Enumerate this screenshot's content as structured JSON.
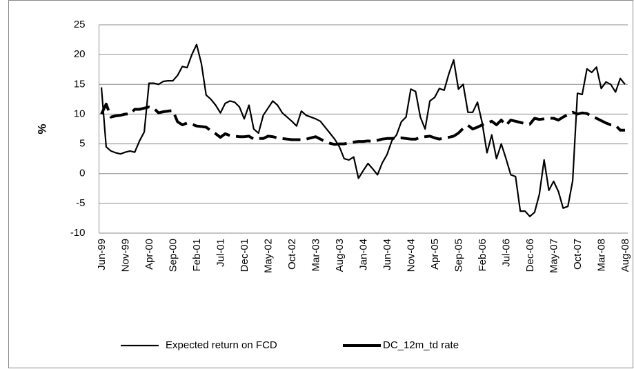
{
  "chart_data": {
    "type": "line",
    "y_label": "%",
    "categories": [
      "Jun-99",
      null,
      null,
      null,
      null,
      "Nov-99",
      null,
      null,
      null,
      null,
      "Apr-00",
      null,
      null,
      null,
      null,
      "Sep-00",
      null,
      null,
      null,
      null,
      "Feb-01",
      null,
      null,
      null,
      null,
      "Jul-01",
      null,
      null,
      null,
      null,
      "Dec-01",
      null,
      null,
      null,
      null,
      "May-02",
      null,
      null,
      null,
      null,
      "Oct-02",
      null,
      null,
      null,
      null,
      "Mar-03",
      null,
      null,
      null,
      null,
      "Aug-03",
      null,
      null,
      null,
      null,
      "Jan-04",
      null,
      null,
      null,
      null,
      "Jun-04",
      null,
      null,
      null,
      null,
      "Nov-04",
      null,
      null,
      null,
      null,
      "Apr-05",
      null,
      null,
      null,
      null,
      "Sep-05",
      null,
      null,
      null,
      null,
      "Feb-06",
      null,
      null,
      null,
      null,
      "Jul-06",
      null,
      null,
      null,
      null,
      "Dec-06",
      null,
      null,
      null,
      null,
      "May-07",
      null,
      null,
      null,
      null,
      "Oct-07",
      null,
      null,
      null,
      null,
      "Mar-08",
      null,
      null,
      null,
      null,
      "Aug-08"
    ],
    "series": [
      {
        "name": "Expected return on FCD",
        "color": "#000000",
        "line_style": "solid",
        "values": [
          14.5,
          4.5,
          3.8,
          3.5,
          3.3,
          3.6,
          3.8,
          3.6,
          5.5,
          7,
          15.2,
          15.2,
          15,
          15.5,
          15.6,
          15.6,
          16.5,
          18,
          17.8,
          20,
          21.7,
          18.5,
          13.2,
          12.5,
          11.5,
          10.2,
          11.8,
          12.2,
          12,
          11.2,
          9.2,
          11.5,
          7.5,
          6.8,
          9.8,
          11,
          12.2,
          11.5,
          10.2,
          9.5,
          8.8,
          8,
          10.5,
          9.8,
          9.5,
          9.2,
          8.8,
          7.8,
          6.8,
          5.8,
          4.5,
          2.5,
          2.3,
          2.8,
          -0.8,
          0.5,
          1.7,
          0.8,
          -0.2,
          1.8,
          3.2,
          5.5,
          6.5,
          8.7,
          9.5,
          14.2,
          13.8,
          9.5,
          7.5,
          12.2,
          12.8,
          14.3,
          14,
          16.8,
          19.1,
          14.2,
          15,
          10.3,
          10.3,
          12,
          8.5,
          3.5,
          6.5,
          2.5,
          5,
          2.5,
          -0.2,
          -0.5,
          -6.3,
          -6.3,
          -7.2,
          -6.5,
          -3.5,
          2.3,
          -2.8,
          -1.3,
          -3,
          -5.8,
          -5.5,
          -1.2,
          13.5,
          13.3,
          17.6,
          17,
          17.9,
          14.3,
          15.4,
          15,
          13.7,
          16,
          15
        ]
      },
      {
        "name": "DC_12m_td rate",
        "color": "#000000",
        "line_style": "dashed",
        "values": [
          10,
          11.7,
          9.5,
          9.7,
          9.8,
          10,
          10,
          10.8,
          10.8,
          11,
          11.2,
          11,
          10.2,
          10.4,
          10.5,
          10.6,
          8.7,
          8.2,
          8.5,
          8.3,
          8,
          7.9,
          7.8,
          7.2,
          6.7,
          6.1,
          6.7,
          6.4,
          6.3,
          6.2,
          6.2,
          6.3,
          5.8,
          5.9,
          5.9,
          6.3,
          6.2,
          6,
          5.9,
          5.8,
          5.7,
          5.7,
          5.7,
          5.8,
          6,
          6.2,
          5.8,
          5.4,
          5.1,
          4.9,
          5,
          5,
          5.2,
          5.3,
          5.4,
          5.4,
          5.5,
          5.4,
          5.6,
          5.8,
          5.9,
          5.9,
          6,
          6,
          5.9,
          5.8,
          5.8,
          6.1,
          6.2,
          6.3,
          6,
          5.8,
          6,
          6.1,
          6.3,
          6.8,
          7.6,
          8.1,
          7.5,
          7.8,
          8.2,
          8.5,
          8.8,
          8.2,
          9,
          8.1,
          9,
          8.8,
          8.6,
          8.4,
          8.3,
          9.3,
          9.1,
          9.2,
          9.3,
          9.3,
          9,
          9.5,
          9.9,
          10.3,
          10,
          10.2,
          10.1,
          9.6,
          9.3,
          8.9,
          8.5,
          8.2,
          8.1,
          7.3,
          7.3
        ]
      }
    ],
    "ylim": [
      -10,
      25
    ],
    "yticks": [
      -10,
      -5,
      0,
      5,
      10,
      15,
      20,
      25
    ],
    "grid": true,
    "legend": "bottom"
  }
}
